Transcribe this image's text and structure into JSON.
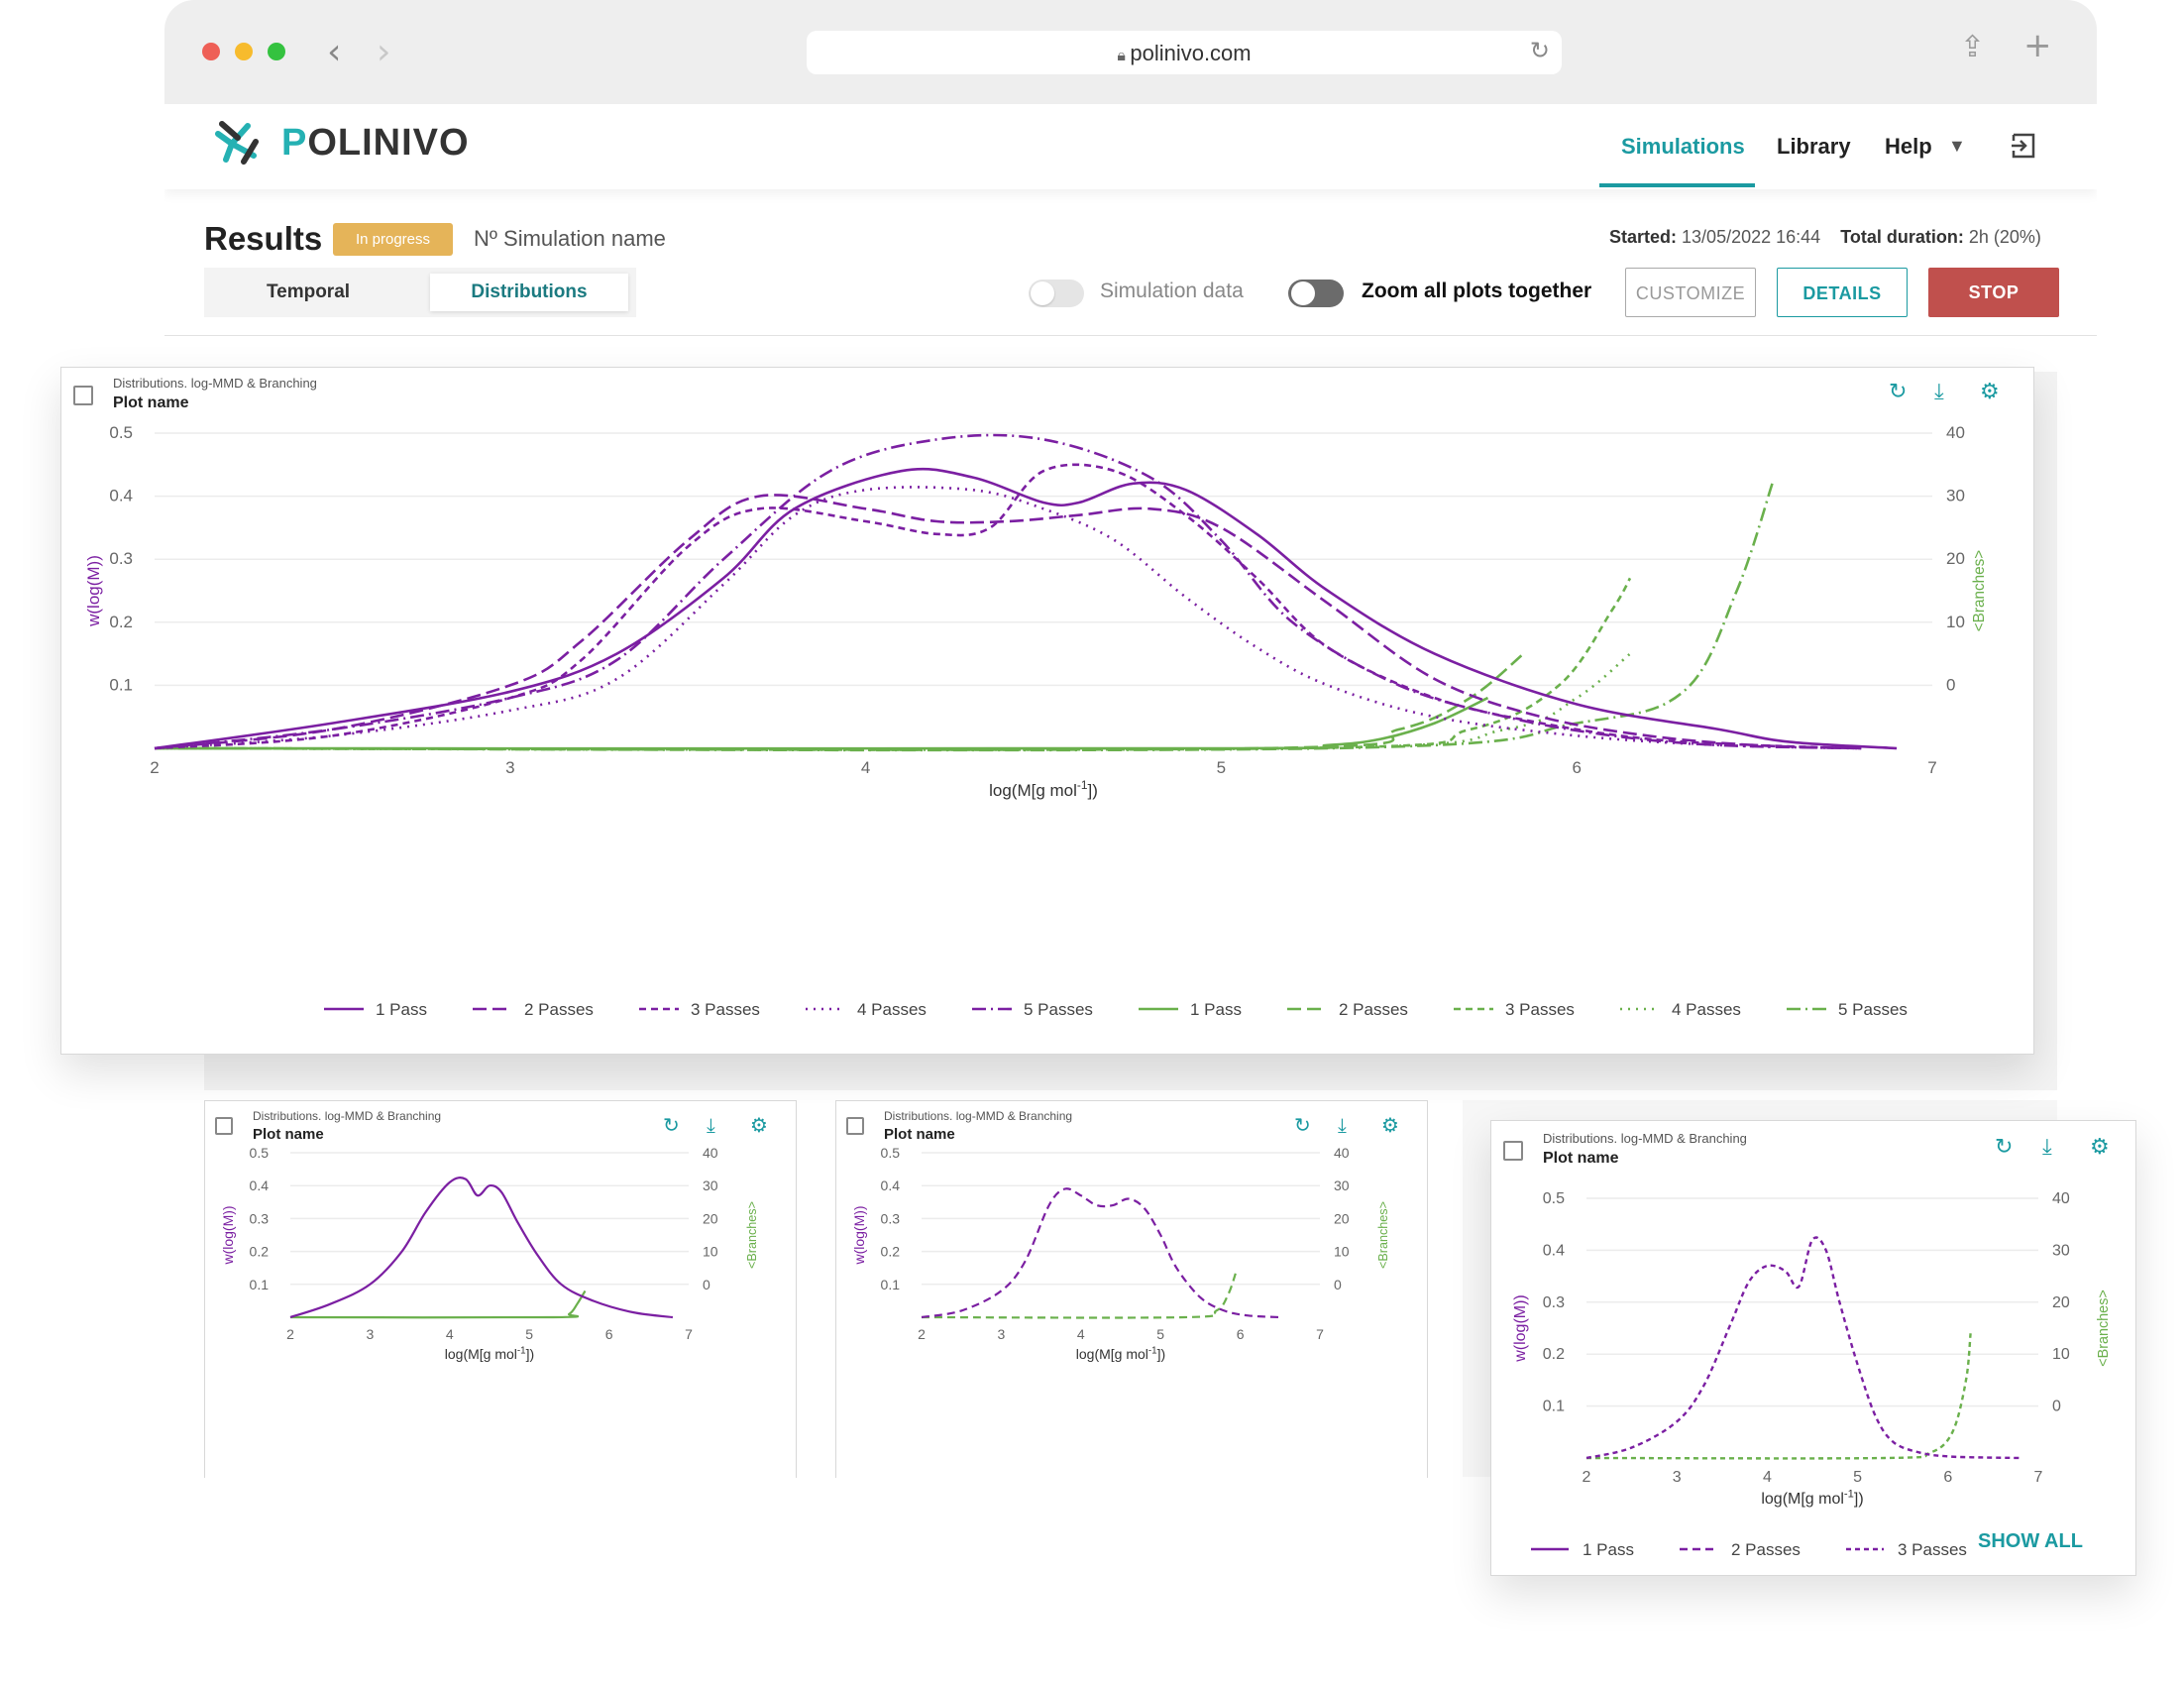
{
  "browser": {
    "url": "polinivo.com"
  },
  "header": {
    "brand_p": "P",
    "brand_rest": "OLINIVO",
    "nav": [
      "Simulations",
      "Library",
      "Help"
    ],
    "logout_icon": "exit-icon"
  },
  "results": {
    "title": "Results",
    "status": "In progress",
    "sim_name": "Nº Simulation name",
    "started_label": "Started:",
    "started_value": "13/05/2022 16:44",
    "duration_label": "Total duration:",
    "duration_value": "2h (20%)",
    "tabs": [
      "Temporal",
      "Distributions"
    ],
    "toggle_sim_data": "Simulation data",
    "toggle_zoom": "Zoom all plots together",
    "btn_customize": "CUSTOMIZE",
    "btn_details": "DETAILS",
    "btn_stop": "STOP"
  },
  "colors": {
    "accent": "#1b9aa1",
    "purple": "#7b1fa2",
    "green": "#6ab04c",
    "stop": "#c0504d",
    "badge": "#e5b459"
  },
  "plot_card": {
    "subtitle": "Distributions. log-MMD & Branching",
    "name": "Plot name",
    "show_all": "SHOW ALL"
  },
  "chart_data": [
    {
      "type": "line",
      "title": "Plot name",
      "xlabel": "log(M[g mol-1])",
      "ylabel": "w(log(M))",
      "y2label": "<Branches>",
      "xlim": [
        2,
        7
      ],
      "ylim": [
        0,
        0.5
      ],
      "y2lim": [
        -10,
        40
      ],
      "xticks": [
        "2",
        "3",
        "4",
        "5",
        "6",
        "7"
      ],
      "yticks": [
        "0.1",
        "0.2",
        "0.3",
        "0.4",
        "0.5"
      ],
      "y2ticks": [
        "0",
        "10",
        "20",
        "30",
        "40"
      ],
      "legend": [
        "1 Pass",
        "2 Passes",
        "3 Passes",
        "4 Passes",
        "5 Passes",
        "1 Pass",
        "2 Passes",
        "3 Passes",
        "4 Passes",
        "5 Passes"
      ],
      "mmd_series": [
        {
          "name": "1 Pass",
          "style": "solid",
          "x": [
            2,
            2.5,
            3,
            3.3,
            3.6,
            3.8,
            4.1,
            4.3,
            4.5,
            4.6,
            4.75,
            4.9,
            5.1,
            5.3,
            5.6,
            6,
            6.4,
            6.6,
            6.9
          ],
          "y": [
            0,
            0.04,
            0.09,
            0.15,
            0.27,
            0.38,
            0.44,
            0.43,
            0.39,
            0.39,
            0.42,
            0.41,
            0.34,
            0.25,
            0.15,
            0.07,
            0.03,
            0.01,
            0
          ]
        },
        {
          "name": "2 Passes",
          "style": "dash",
          "x": [
            2,
            2.5,
            3,
            3.2,
            3.5,
            3.7,
            4,
            4.2,
            4.4,
            4.6,
            4.8,
            5,
            5.3,
            5.6,
            5.9,
            6.2,
            6.5,
            6.8
          ],
          "y": [
            0,
            0.03,
            0.1,
            0.17,
            0.33,
            0.4,
            0.38,
            0.36,
            0.36,
            0.37,
            0.38,
            0.35,
            0.23,
            0.11,
            0.05,
            0.02,
            0.005,
            0
          ]
        },
        {
          "name": "3 Passes",
          "style": "dash2",
          "x": [
            2,
            2.5,
            3,
            3.2,
            3.5,
            3.7,
            4,
            4.2,
            4.35,
            4.5,
            4.7,
            4.9,
            5.1,
            5.3,
            5.6,
            5.9,
            6.2,
            6.5,
            6.8
          ],
          "y": [
            0,
            0.02,
            0.08,
            0.14,
            0.32,
            0.38,
            0.36,
            0.34,
            0.35,
            0.44,
            0.44,
            0.37,
            0.27,
            0.16,
            0.08,
            0.04,
            0.015,
            0.005,
            0
          ]
        },
        {
          "name": "4 Passes",
          "style": "dot",
          "x": [
            2,
            2.5,
            3,
            3.3,
            3.6,
            3.8,
            4,
            4.3,
            4.5,
            4.7,
            4.9,
            5.1,
            5.3,
            5.6,
            6,
            6.4,
            6.8
          ],
          "y": [
            0,
            0.02,
            0.06,
            0.11,
            0.26,
            0.37,
            0.41,
            0.41,
            0.38,
            0.33,
            0.24,
            0.16,
            0.1,
            0.05,
            0.02,
            0.005,
            0
          ]
        },
        {
          "name": "5 Passes",
          "style": "dashdot",
          "x": [
            2,
            2.5,
            3,
            3.3,
            3.6,
            3.9,
            4.2,
            4.5,
            4.8,
            5.0,
            5.2,
            5.5,
            5.8,
            6.1,
            6.4,
            6.8
          ],
          "y": [
            0,
            0.03,
            0.08,
            0.14,
            0.3,
            0.44,
            0.49,
            0.49,
            0.43,
            0.33,
            0.2,
            0.1,
            0.05,
            0.02,
            0.005,
            0
          ]
        }
      ],
      "branch_series": [
        {
          "name": "1 Pass",
          "style": "solid",
          "x": [
            2,
            5,
            5.3,
            5.45,
            5.6,
            5.75
          ],
          "y": [
            -10,
            -10,
            -9.5,
            -8.5,
            -6,
            -2
          ]
        },
        {
          "name": "2 Passes",
          "style": "dash",
          "x": [
            2,
            5.1,
            5.5,
            5.7,
            5.85
          ],
          "y": [
            -10,
            -10,
            -7,
            -2,
            5
          ]
        },
        {
          "name": "3 Passes",
          "style": "dash2",
          "x": [
            2,
            5.2,
            5.7,
            5.95,
            6.1,
            6.15
          ],
          "y": [
            -10,
            -10,
            -7,
            0,
            12,
            17
          ]
        },
        {
          "name": "4 Passes",
          "style": "dot",
          "x": [
            2,
            5.2,
            5.8,
            6.0,
            6.15
          ],
          "y": [
            -10,
            -10,
            -7,
            -2,
            5
          ]
        },
        {
          "name": "5 Passes",
          "style": "dashdot",
          "x": [
            2,
            5.3,
            6.0,
            6.3,
            6.45,
            6.55
          ],
          "y": [
            -10,
            -10,
            -6,
            -1,
            15,
            32
          ]
        }
      ]
    },
    {
      "type": "line",
      "title": "Plot name",
      "xlabel": "log(M[g mol-1])",
      "ylabel": "w(log(M))",
      "y2label": "<Branches>",
      "xlim": [
        2,
        7
      ],
      "ylim": [
        0,
        0.5
      ],
      "y2lim": [
        -10,
        40
      ],
      "xticks": [
        "2",
        "3",
        "4",
        "5",
        "6",
        "7"
      ],
      "yticks": [
        "0.1",
        "0.2",
        "0.3",
        "0.4",
        "0.5"
      ],
      "y2ticks": [
        "0",
        "10",
        "20",
        "30",
        "40"
      ],
      "mmd_series": [
        {
          "name": "1 Pass",
          "style": "solid",
          "x": [
            2,
            2.5,
            3,
            3.4,
            3.7,
            4,
            4.2,
            4.35,
            4.5,
            4.65,
            4.85,
            5.1,
            5.4,
            5.8,
            6.3,
            6.8
          ],
          "y": [
            0,
            0.04,
            0.1,
            0.2,
            0.32,
            0.41,
            0.42,
            0.37,
            0.4,
            0.38,
            0.29,
            0.19,
            0.1,
            0.05,
            0.015,
            0
          ]
        }
      ],
      "branch_series": [
        {
          "name": "1 Pass",
          "style": "solid",
          "x": [
            2,
            5.3,
            5.5,
            5.6,
            5.7
          ],
          "y": [
            -10,
            -10,
            -9,
            -6,
            -2
          ]
        }
      ]
    },
    {
      "type": "line",
      "title": "Plot name",
      "xlabel": "log(M[g mol-1])",
      "ylabel": "w(log(M))",
      "y2label": "<Branches>",
      "xlim": [
        2,
        7
      ],
      "ylim": [
        0,
        0.5
      ],
      "y2lim": [
        -10,
        40
      ],
      "xticks": [
        "2",
        "3",
        "4",
        "5",
        "6",
        "7"
      ],
      "yticks": [
        "0.1",
        "0.2",
        "0.3",
        "0.4",
        "0.5"
      ],
      "y2ticks": [
        "0",
        "10",
        "20",
        "30",
        "40"
      ],
      "mmd_series": [
        {
          "name": "2 Passes",
          "style": "dash",
          "x": [
            2,
            2.5,
            3,
            3.3,
            3.6,
            3.8,
            4,
            4.2,
            4.4,
            4.6,
            4.8,
            5.0,
            5.2,
            5.5,
            5.8,
            6.1,
            6.5
          ],
          "y": [
            0,
            0.02,
            0.08,
            0.17,
            0.34,
            0.39,
            0.37,
            0.34,
            0.34,
            0.36,
            0.33,
            0.25,
            0.15,
            0.06,
            0.02,
            0.005,
            0
          ]
        }
      ],
      "branch_series": [
        {
          "name": "2 Passes",
          "style": "dash",
          "x": [
            2,
            5.3,
            5.7,
            5.85,
            5.95
          ],
          "y": [
            -10,
            -10,
            -8,
            -3,
            4
          ]
        }
      ]
    },
    {
      "type": "line",
      "title": "Plot name",
      "xlabel": "log(M[g mol-1])",
      "ylabel": "w(log(M))",
      "y2label": "<Branches>",
      "xlim": [
        2,
        7
      ],
      "ylim": [
        0,
        0.5
      ],
      "y2lim": [
        -10,
        40
      ],
      "xticks": [
        "2",
        "3",
        "4",
        "5",
        "6",
        "7"
      ],
      "yticks": [
        "0.1",
        "0.2",
        "0.3",
        "0.4",
        "0.5"
      ],
      "y2ticks": [
        "0",
        "10",
        "20",
        "30",
        "40"
      ],
      "legend": [
        "1 Pass",
        "2 Passes",
        "3 Passes"
      ],
      "mmd_series": [
        {
          "name": "3 Passes",
          "style": "dash2",
          "x": [
            2,
            2.5,
            3,
            3.3,
            3.6,
            3.8,
            4,
            4.2,
            4.35,
            4.5,
            4.65,
            4.8,
            5,
            5.2,
            5.4,
            5.7,
            6,
            6.4,
            6.8
          ],
          "y": [
            0,
            0.02,
            0.07,
            0.14,
            0.26,
            0.34,
            0.37,
            0.36,
            0.33,
            0.42,
            0.4,
            0.3,
            0.18,
            0.08,
            0.03,
            0.01,
            0.003,
            0.001,
            0
          ]
        }
      ],
      "branch_series": [
        {
          "name": "3 Passes",
          "style": "dash2",
          "x": [
            2,
            5.3,
            5.8,
            6.05,
            6.2,
            6.25
          ],
          "y": [
            -10,
            -10,
            -9,
            -5,
            5,
            14
          ]
        }
      ]
    }
  ]
}
